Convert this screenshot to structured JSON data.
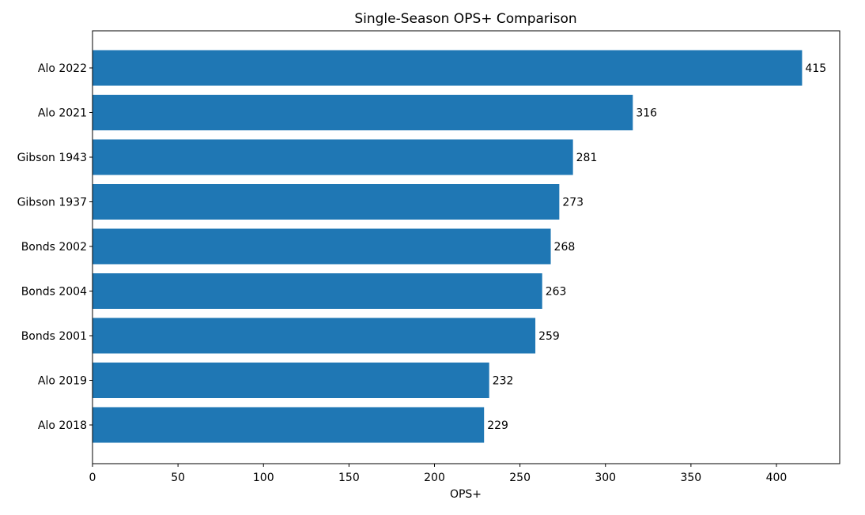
{
  "chart_data": {
    "type": "bar",
    "orientation": "horizontal",
    "title": "Single-Season OPS+ Comparison",
    "xlabel": "OPS+",
    "ylabel": "",
    "xlim": [
      0,
      437
    ],
    "xticks": [
      0,
      50,
      100,
      150,
      200,
      250,
      300,
      350,
      400
    ],
    "grid": false,
    "legend": "none",
    "bar_color": "#1f77b4",
    "categories": [
      "Alo 2022",
      "Alo 2021",
      "Gibson 1943",
      "Gibson 1937",
      "Bonds 2002",
      "Bonds 2004",
      "Bonds 2001",
      "Alo 2019",
      "Alo 2018"
    ],
    "values": [
      415,
      316,
      281,
      273,
      268,
      263,
      259,
      232,
      229
    ]
  }
}
